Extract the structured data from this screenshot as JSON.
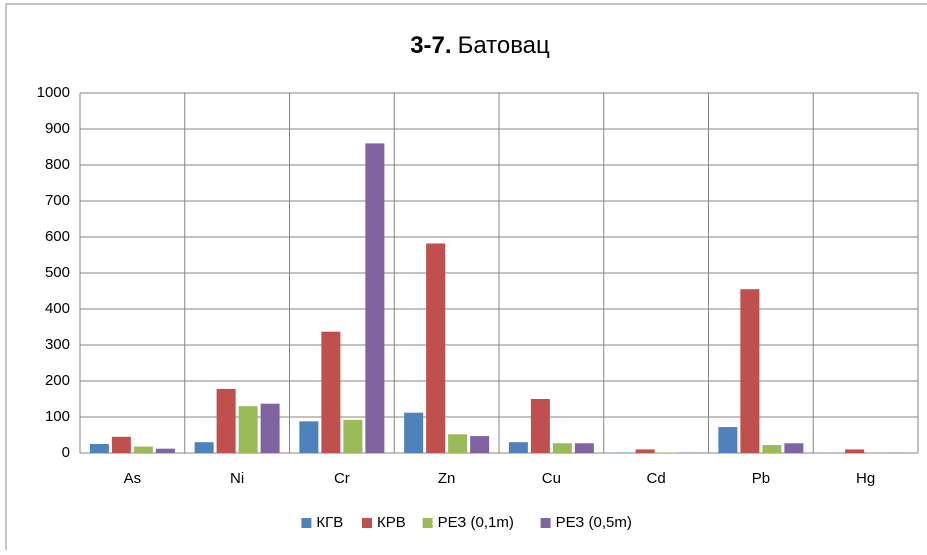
{
  "chart_data": {
    "type": "bar",
    "title_bold": "3-7.",
    "title": "Батовац",
    "categories": [
      "As",
      "Ni",
      "Cr",
      "Zn",
      "Cu",
      "Cd",
      "Pb",
      "Hg"
    ],
    "series": [
      {
        "name": "КГВ",
        "color": "#4f81bd",
        "values": [
          25,
          30,
          88,
          112,
          30,
          1,
          72,
          0.5
        ]
      },
      {
        "name": "КРВ",
        "color": "#c0504d",
        "values": [
          45,
          178,
          337,
          582,
          150,
          10,
          455,
          10
        ]
      },
      {
        "name": "РЕЗ (0,1m)",
        "color": "#9bbb59",
        "values": [
          18,
          130,
          92,
          52,
          27,
          1,
          22,
          0.5
        ]
      },
      {
        "name": "РЕЗ (0,5m)",
        "color": "#8064a2",
        "values": [
          12,
          137,
          860,
          47,
          27,
          1,
          27,
          0.5
        ]
      }
    ],
    "ylim": [
      0,
      1000
    ],
    "yticks": [
      0,
      100,
      200,
      300,
      400,
      500,
      600,
      700,
      800,
      900,
      1000
    ],
    "grid": true,
    "legend": "bottom"
  }
}
